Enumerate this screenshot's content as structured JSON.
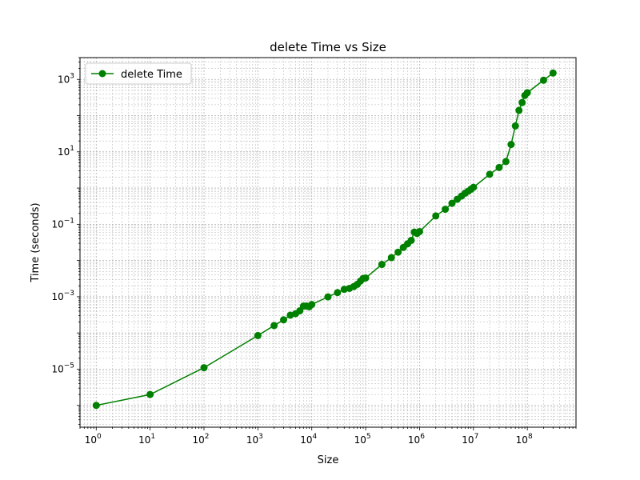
{
  "chart_data": {
    "type": "line",
    "title": "delete Time vs Size",
    "xlabel": "Size",
    "ylabel": "Time (seconds)",
    "xscale": "log",
    "yscale": "log",
    "xlim": [
      0.5,
      800000000
    ],
    "ylim": [
      2.5e-07,
      4000
    ],
    "grid": true,
    "grid_which": "both",
    "legend_position": "upper-left",
    "x_tick_labels": [
      {
        "base": "10",
        "exp": "0"
      },
      {
        "base": "10",
        "exp": "1"
      },
      {
        "base": "10",
        "exp": "2"
      },
      {
        "base": "10",
        "exp": "3"
      },
      {
        "base": "10",
        "exp": "4"
      },
      {
        "base": "10",
        "exp": "5"
      },
      {
        "base": "10",
        "exp": "6"
      },
      {
        "base": "10",
        "exp": "7"
      },
      {
        "base": "10",
        "exp": "8"
      }
    ],
    "y_tick_labels": [
      {
        "base": "10",
        "exp": "−5"
      },
      {
        "base": "10",
        "exp": "−3"
      },
      {
        "base": "10",
        "exp": "−1"
      },
      {
        "base": "10",
        "exp": "1"
      },
      {
        "base": "10",
        "exp": "3"
      }
    ],
    "series": [
      {
        "name": "delete Time",
        "color": "#008000",
        "marker": "circle",
        "x": [
          1,
          10,
          100,
          1000,
          2000,
          3000,
          4000,
          5000,
          6000,
          7000,
          8000,
          9000,
          10000,
          20000,
          30000,
          40000,
          50000,
          60000,
          70000,
          80000,
          90000,
          100000,
          200000,
          300000,
          400000,
          500000,
          600000,
          700000,
          800000,
          900000,
          1000000,
          2000000,
          3000000,
          4000000,
          5000000,
          6000000,
          7000000,
          8000000,
          9000000,
          10000000,
          20000000,
          30000000,
          40000000,
          50000000,
          60000000,
          70000000,
          80000000,
          90000000,
          100000000,
          200000000,
          300000000
        ],
        "y": [
          1e-06,
          2e-06,
          1.1e-05,
          8.5e-05,
          0.00016,
          0.00023,
          0.00031,
          0.00034,
          0.00041,
          0.00055,
          0.00055,
          0.00053,
          0.00061,
          0.00099,
          0.0013,
          0.0016,
          0.0017,
          0.0019,
          0.0022,
          0.0027,
          0.0032,
          0.0033,
          0.0078,
          0.012,
          0.017,
          0.023,
          0.029,
          0.036,
          0.061,
          0.056,
          0.063,
          0.17,
          0.26,
          0.38,
          0.49,
          0.6,
          0.72,
          0.82,
          0.93,
          1.05,
          2.4,
          3.7,
          5.4,
          16,
          52,
          140,
          230,
          360,
          430,
          950,
          1500
        ]
      }
    ]
  }
}
